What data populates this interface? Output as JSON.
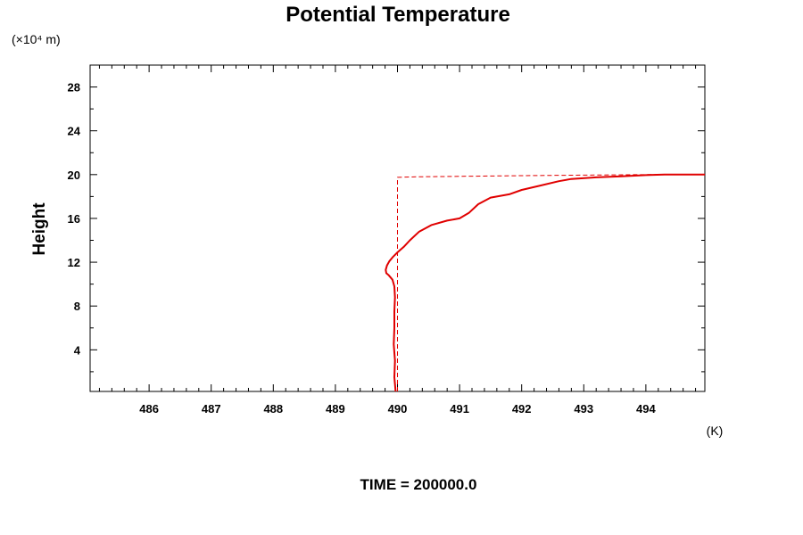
{
  "chart_data": {
    "type": "line",
    "title": "Potential Temperature",
    "ylabel": "Height",
    "y_unit": "(×10⁴ m)",
    "x_unit": "(K)",
    "footer": "TIME = 200000.0",
    "xlim": [
      485.05,
      494.95
    ],
    "ylim": [
      0.2,
      30.0
    ],
    "x_ticks": [
      486,
      487,
      488,
      489,
      490,
      491,
      492,
      493,
      494
    ],
    "x_tick_labels": [
      "486",
      "487",
      "488",
      "489",
      "490",
      "491",
      "492",
      "493",
      "494"
    ],
    "y_ticks": [
      4,
      8,
      12,
      16,
      20,
      24,
      28
    ],
    "y_tick_labels": [
      "4",
      "8",
      "12",
      "16",
      "20",
      "24",
      "28"
    ],
    "grid": false,
    "series": [
      {
        "style": "solid",
        "color": "#e00000",
        "x": [
          489.97,
          489.95,
          489.96,
          489.94,
          489.95,
          489.95,
          489.96,
          489.95,
          489.92,
          489.86,
          489.82,
          489.81,
          489.83,
          489.87,
          489.93,
          490.0,
          490.1,
          490.2,
          490.35,
          490.55,
          490.8,
          491.0,
          491.15,
          491.3,
          491.5,
          491.8,
          492.0,
          492.3,
          492.6,
          492.8,
          493.2,
          493.6,
          494.0,
          494.3,
          494.95
        ],
        "y": [
          0.2,
          1.5,
          3.0,
          4.5,
          6.0,
          7.5,
          8.8,
          9.8,
          10.4,
          10.8,
          11.0,
          11.3,
          11.7,
          12.1,
          12.5,
          12.9,
          13.4,
          14.0,
          14.8,
          15.4,
          15.8,
          16.0,
          16.5,
          17.3,
          17.9,
          18.2,
          18.6,
          19.0,
          19.4,
          19.6,
          19.75,
          19.85,
          19.95,
          20.0,
          20.0
        ]
      },
      {
        "style": "dashed",
        "color": "#e00000",
        "x": [
          490.0,
          490.0,
          490.3,
          492.0,
          494.0,
          494.95
        ],
        "y": [
          0.2,
          19.75,
          19.8,
          19.9,
          20.0,
          20.0
        ]
      }
    ]
  }
}
